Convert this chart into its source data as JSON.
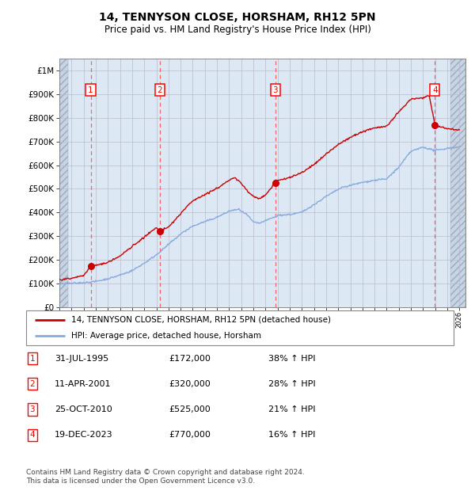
{
  "title": "14, TENNYSON CLOSE, HORSHAM, RH12 5PN",
  "subtitle": "Price paid vs. HM Land Registry's House Price Index (HPI)",
  "footer": "Contains HM Land Registry data © Crown copyright and database right 2024.\nThis data is licensed under the Open Government Licence v3.0.",
  "legend_line1": "14, TENNYSON CLOSE, HORSHAM, RH12 5PN (detached house)",
  "legend_line2": "HPI: Average price, detached house, Horsham",
  "sales": [
    {
      "num": 1,
      "date_x": 1995.58,
      "price": 172000,
      "label": "31-JUL-1995",
      "pct": "38% ↑ HPI"
    },
    {
      "num": 2,
      "date_x": 2001.28,
      "price": 320000,
      "label": "11-APR-2001",
      "pct": "28% ↑ HPI"
    },
    {
      "num": 3,
      "date_x": 2010.82,
      "price": 525000,
      "label": "25-OCT-2010",
      "pct": "21% ↑ HPI"
    },
    {
      "num": 4,
      "date_x": 2023.97,
      "price": 770000,
      "label": "19-DEC-2023",
      "pct": "16% ↑ HPI"
    }
  ],
  "hpi_color": "#88aadd",
  "price_color": "#cc0000",
  "sale_dot_color": "#cc0000",
  "vline_color": "#ff5555",
  "ylim": [
    0,
    1050000
  ],
  "yticks": [
    0,
    100000,
    200000,
    300000,
    400000,
    500000,
    600000,
    700000,
    800000,
    900000,
    1000000
  ],
  "ytick_labels": [
    "£0",
    "£100K",
    "£200K",
    "£300K",
    "£400K",
    "£500K",
    "£600K",
    "£700K",
    "£800K",
    "£900K",
    "£1M"
  ],
  "xlim_start": 1993.0,
  "xlim_end": 2026.5,
  "hatch_left_end": 1993.75,
  "hatch_right_start": 2025.25
}
